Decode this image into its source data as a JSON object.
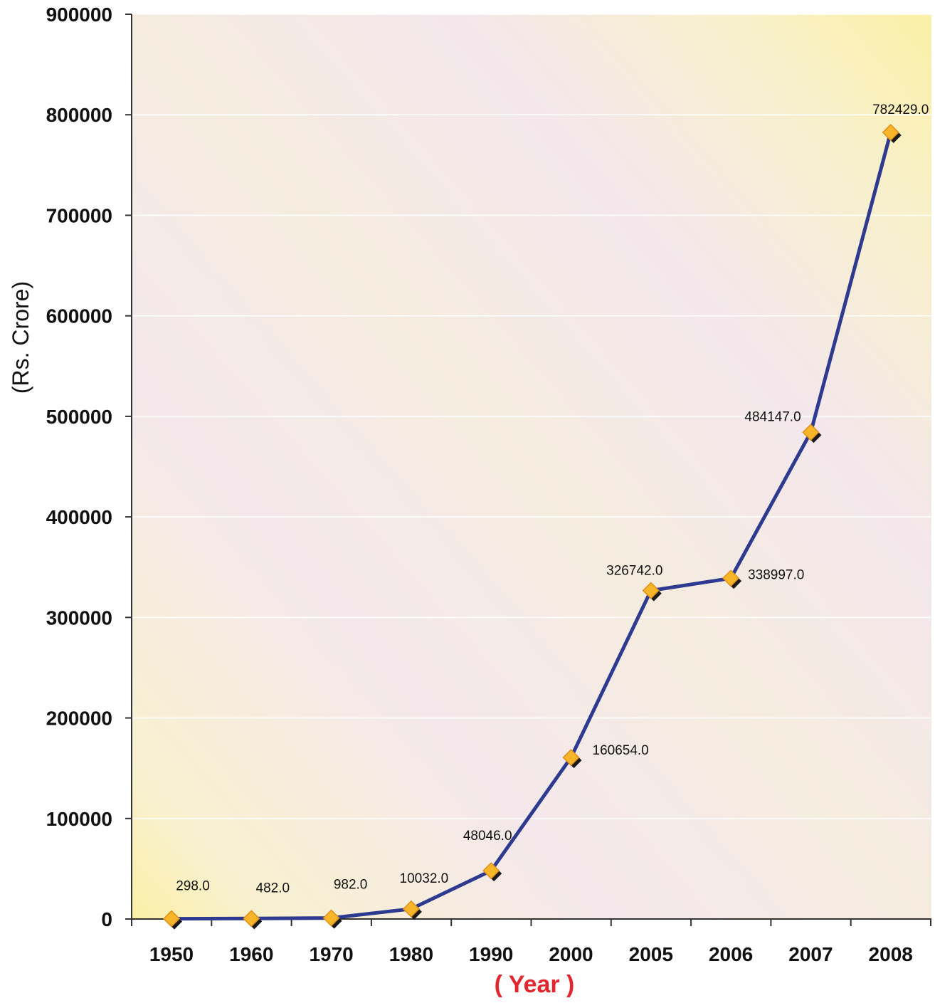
{
  "chart_data": {
    "type": "line",
    "title": "",
    "xlabel": "( Year )",
    "ylabel": "(Rs. Crore)",
    "categories": [
      "1950",
      "1960",
      "1970",
      "1980",
      "1990",
      "2000",
      "2005",
      "2006",
      "2007",
      "2008"
    ],
    "series": [
      {
        "values": [
          298.0,
          482.0,
          982.0,
          10032.0,
          48046.0,
          160654.0,
          326742.0,
          338997.0,
          484147.0,
          782429.0
        ],
        "data_labels": [
          "298.0",
          "482.0",
          "982.0",
          "10032.0",
          "48046.0",
          "160654.0",
          "326742.0",
          "338997.0",
          "484147.0",
          "782429.0"
        ]
      }
    ],
    "ylim": [
      0,
      900000
    ],
    "yticks": [
      "0",
      "100000",
      "200000",
      "300000",
      "400000",
      "500000",
      "600000",
      "700000",
      "800000",
      "900000"
    ],
    "grid": true,
    "legend": "none",
    "colors": {
      "line": "#2e3a8f",
      "marker": "#f7b52a",
      "marker_outline": "#e0901a",
      "marker_shadow": "#1a1a1a",
      "gridline": "#ffffff",
      "axis": "#333333",
      "xlabel_color": "#e3262d",
      "bg_yellow": "#fbf0a6",
      "bg_pink": "#f3e4ee"
    }
  }
}
